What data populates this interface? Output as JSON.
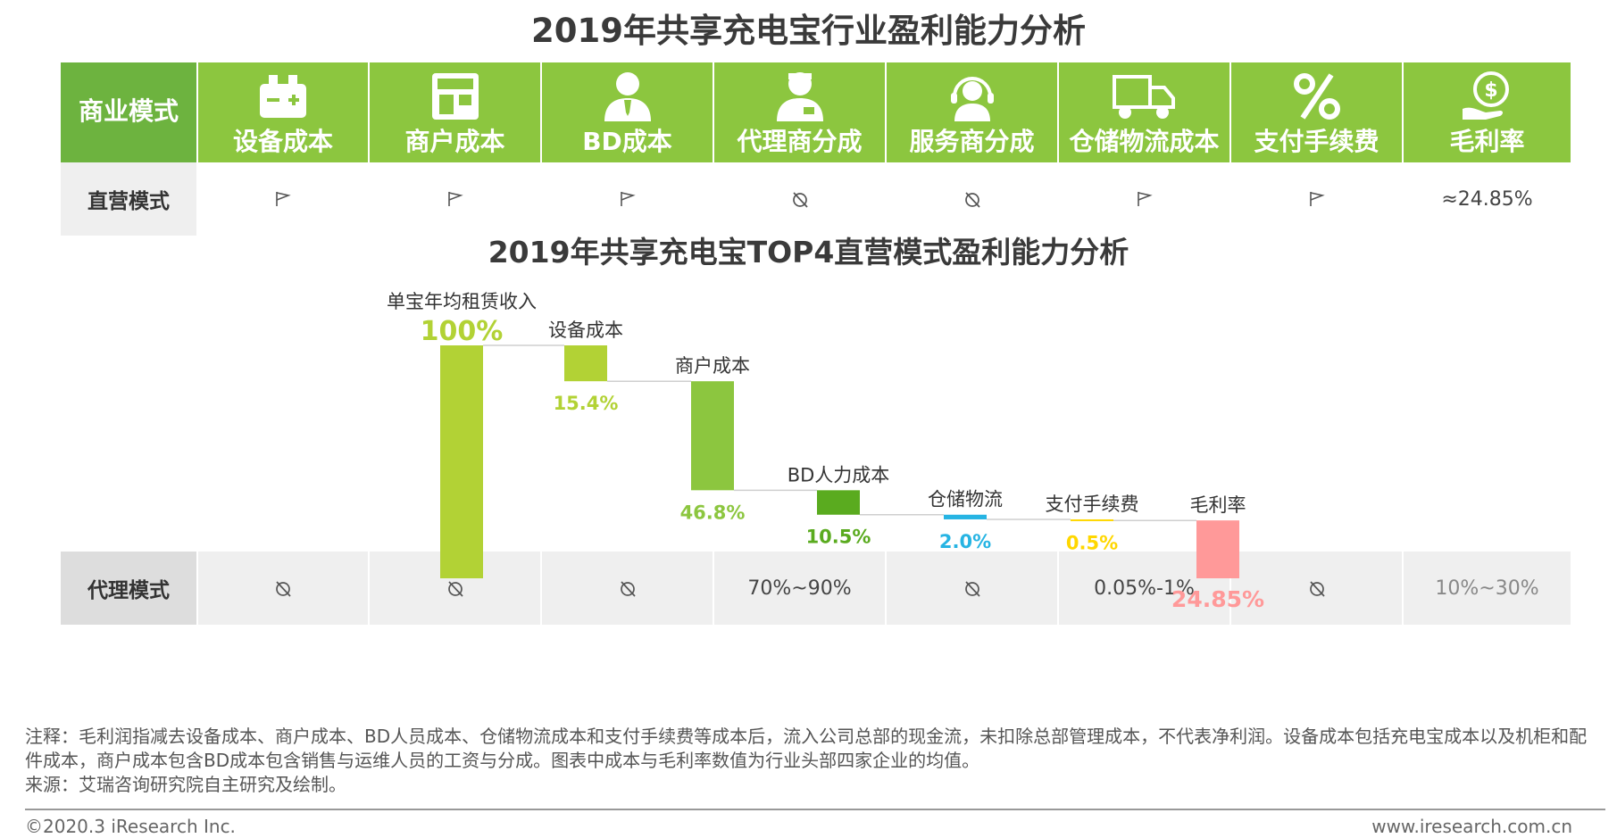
{
  "title": "2019年共享充电宝行业盈利能力分析",
  "table": {
    "headers": [
      {
        "label": "商业模式",
        "icon": "none"
      },
      {
        "label": "设备成本",
        "icon": "battery-icon"
      },
      {
        "label": "商户成本",
        "icon": "storefront-icon"
      },
      {
        "label": "BD成本",
        "icon": "businessman-icon"
      },
      {
        "label": "代理商分成",
        "icon": "agent-icon"
      },
      {
        "label": "服务商分成",
        "icon": "service-person-icon"
      },
      {
        "label": "仓储物流成本",
        "icon": "delivery-truck-icon"
      },
      {
        "label": "支付手续费",
        "icon": "percent-icon"
      },
      {
        "label": "毛利率",
        "icon": "money-hand-icon"
      }
    ],
    "rows": [
      {
        "label": "直营模式",
        "cells": [
          {
            "type": "icon",
            "icon": "flag-icon"
          },
          {
            "type": "icon",
            "icon": "flag-icon"
          },
          {
            "type": "icon",
            "icon": "flag-icon"
          },
          {
            "type": "icon",
            "icon": "no-icon"
          },
          {
            "type": "icon",
            "icon": "no-icon"
          },
          {
            "type": "icon",
            "icon": "flag-icon"
          },
          {
            "type": "icon",
            "icon": "flag-icon"
          },
          {
            "type": "text",
            "text": "≈24.85%"
          }
        ]
      },
      {
        "label": "代理模式",
        "cells": [
          {
            "type": "icon",
            "icon": "no-icon"
          },
          {
            "type": "icon",
            "icon": "no-icon"
          },
          {
            "type": "icon",
            "icon": "no-icon"
          },
          {
            "type": "text",
            "text": "70%~90%"
          },
          {
            "type": "icon",
            "icon": "no-icon"
          },
          {
            "type": "text",
            "text": "0.05%-1%"
          },
          {
            "type": "icon",
            "icon": "no-icon"
          },
          {
            "type": "text",
            "text": "10%~30%"
          }
        ]
      }
    ]
  },
  "chart_title": "2019年共享充电宝TOP4直营模式盈利能力分析",
  "chart_data": {
    "type": "bar",
    "subtype": "waterfall",
    "title": "2019年共享充电宝TOP4直营模式盈利能力分析",
    "ylim": [
      0,
      100
    ],
    "categories": [
      "单宝年均租赁收入",
      "设备成本",
      "商户成本",
      "BD人力成本",
      "仓储物流",
      "支付手续费",
      "毛利率"
    ],
    "values": [
      100,
      15.4,
      46.8,
      10.5,
      2.0,
      0.5,
      24.85
    ],
    "value_labels": [
      "100%",
      "15.4%",
      "46.8%",
      "10.5%",
      "2.0%",
      "0.5%",
      "24.85%"
    ],
    "colors": [
      "#b2d235",
      "#b2d235",
      "#8cc63f",
      "#5aab1f",
      "#27b4e3",
      "#ffd700",
      "#ff9999"
    ],
    "grid": false,
    "legend": "none"
  },
  "note": "注释：毛利润指减去设备成本、商户成本、BD人员成本、仓储物流成本和支付手续费等成本后，流入公司总部的现金流，未扣除总部管理成本，不代表净利润。设备成本包括充电宝成本以及机柜和配件成本，商户成本包含BD成本包含销售与运维人员的工资与分成。图表中成本与毛利率数值为行业头部四家企业的均值。",
  "source": "来源：艾瑞咨询研究院自主研究及绘制。",
  "copyright": "©2020.3 iResearch Inc.",
  "website": "www.iresearch.com.cn"
}
